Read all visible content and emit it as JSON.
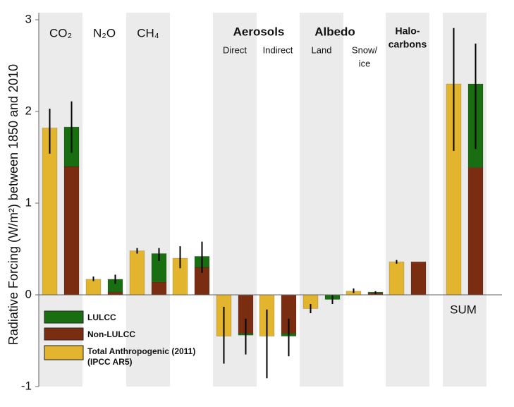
{
  "chart_data": {
    "type": "bar",
    "y_label": "Radiative Forcing (W/m²) between 1850 and 2010",
    "group_labels": [
      "Aerosols",
      "Albedo"
    ],
    "categories": [
      "CO₂",
      "N₂O",
      "CH₄",
      null,
      "Direct",
      "Indirect",
      "Land",
      [
        "Snow/",
        "ice"
      ],
      [
        "Halo-",
        "carbons"
      ],
      "SUM"
    ],
    "series": [
      {
        "name": "Total Anthropogenic (2011) (IPCC AR5)",
        "color": "#e3b52f",
        "values": [
          1.82,
          0.17,
          0.48,
          0.4,
          -0.45,
          -0.45,
          -0.15,
          0.04,
          0.36,
          2.3
        ],
        "err_low": [
          1.54,
          0.15,
          0.45,
          0.29,
          -0.75,
          -0.91,
          -0.2,
          0.02,
          0.34,
          1.57
        ],
        "err_high": [
          2.03,
          0.2,
          0.51,
          0.53,
          -0.13,
          -0.16,
          -0.1,
          0.07,
          0.38,
          2.91
        ]
      },
      {
        "name": "Non-LULCC",
        "color": "#7b2d11",
        "values": [
          1.4,
          0.03,
          0.14,
          0.3,
          -0.42,
          -0.42,
          0,
          0.02,
          0.36,
          1.39
        ]
      },
      {
        "name": "LULCC",
        "color": "#1a6e12",
        "values": [
          0.43,
          0.14,
          0.31,
          0.12,
          -0.02,
          -0.03,
          -0.05,
          0.01,
          0,
          0.91
        ],
        "err_low": [
          1.55,
          0.12,
          0.37,
          0.24,
          -0.65,
          -0.67,
          -0.1,
          0.01,
          0.36,
          1.59
        ],
        "err_high": [
          2.11,
          0.22,
          0.51,
          0.58,
          -0.26,
          -0.26,
          0.0,
          0.04,
          0.36,
          2.74
        ]
      }
    ],
    "ylim": [
      -1,
      3
    ],
    "yticks": [
      -1,
      0,
      1,
      2,
      3
    ]
  }
}
